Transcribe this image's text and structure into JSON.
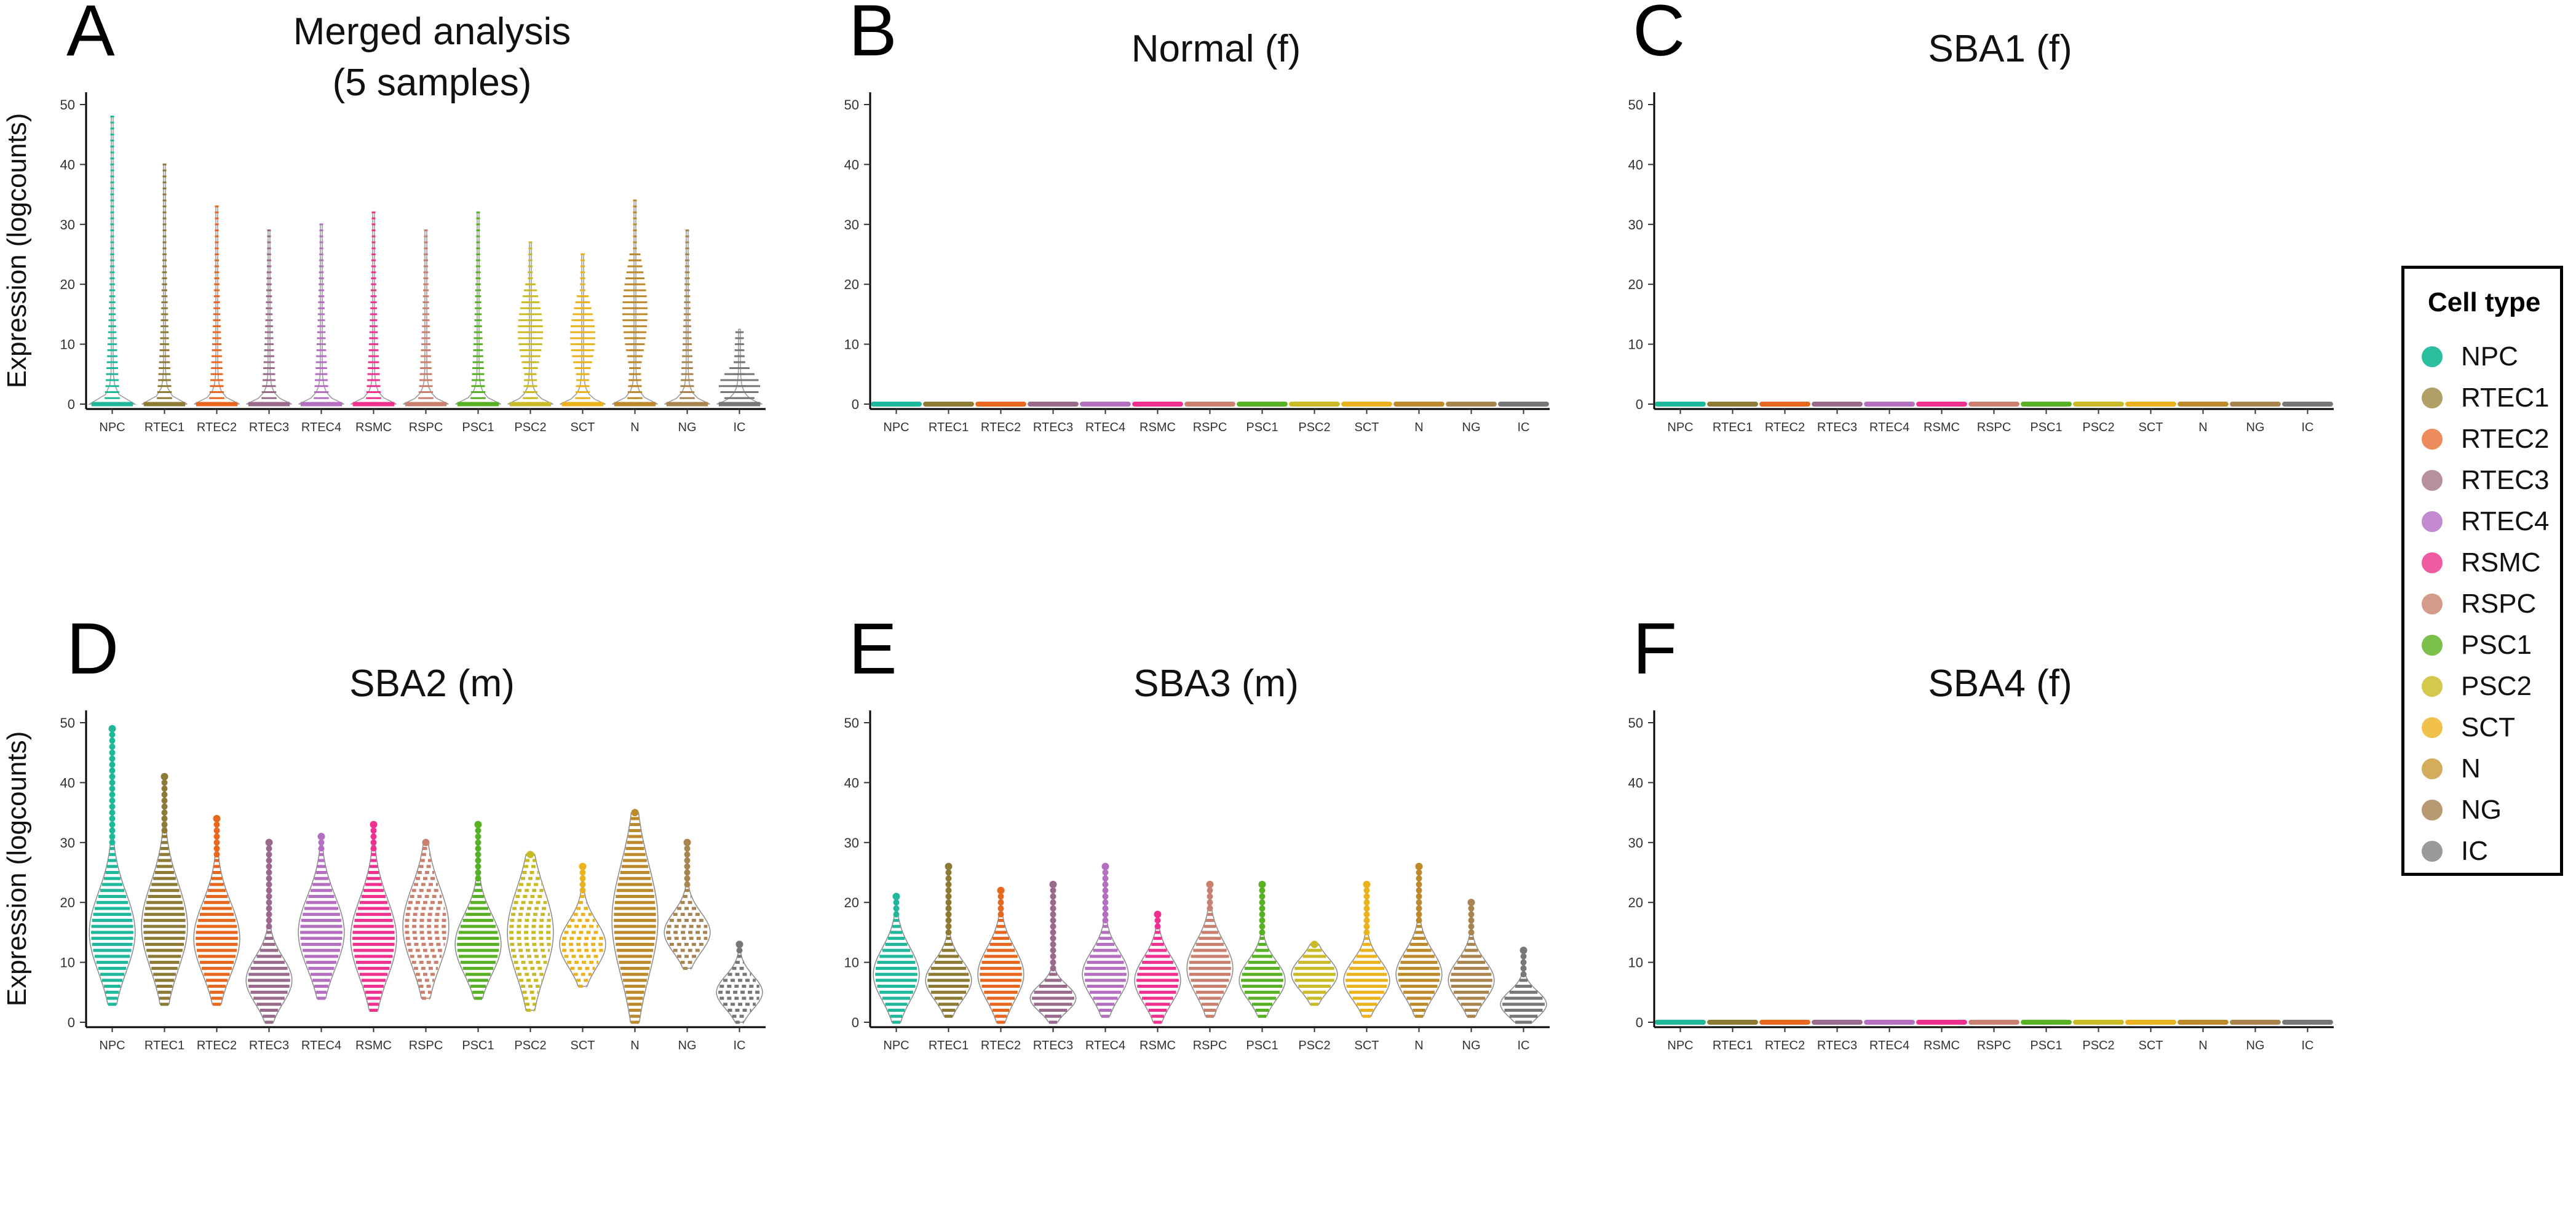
{
  "chart_data": {
    "type": "violin",
    "y_axis_label": "Expression (logcounts)",
    "ylim": [
      0,
      50
    ],
    "yticks": [
      0,
      10,
      20,
      30,
      40,
      50
    ],
    "categories": [
      "NPC",
      "RTEC1",
      "RTEC2",
      "RTEC3",
      "RTEC4",
      "RSMC",
      "RSPC",
      "PSC1",
      "PSC2",
      "SCT",
      "N",
      "NG",
      "IC"
    ],
    "colors": [
      "#1fb89a",
      "#8c7a35",
      "#e8671e",
      "#9a6a8c",
      "#b46fc1",
      "#f0318f",
      "#c9806f",
      "#58b024",
      "#c9bb27",
      "#eab21d",
      "#bc8a2a",
      "#a9844f",
      "#777777"
    ],
    "legend": {
      "title": "Cell type",
      "items": [
        {
          "label": "NPC",
          "color": "#2bbf9f"
        },
        {
          "label": "RTEC1",
          "color": "#b0a068"
        },
        {
          "label": "RTEC2",
          "color": "#ec8b5b"
        },
        {
          "label": "RTEC3",
          "color": "#b6909f"
        },
        {
          "label": "RTEC4",
          "color": "#c48ad1"
        },
        {
          "label": "RSMC",
          "color": "#f05aa0"
        },
        {
          "label": "RSPC",
          "color": "#d49a8a"
        },
        {
          "label": "PSC1",
          "color": "#7cc04c"
        },
        {
          "label": "PSC2",
          "color": "#d3c94c"
        },
        {
          "label": "SCT",
          "color": "#f0c24c"
        },
        {
          "label": "N",
          "color": "#d4ad5c"
        },
        {
          "label": "NG",
          "color": "#b89a72"
        },
        {
          "label": "IC",
          "color": "#9a9a9a"
        }
      ]
    },
    "panels": [
      {
        "letter": "A",
        "title": "Merged analysis\n(5 samples)",
        "style": "merged",
        "max": [
          48,
          40,
          33,
          29,
          30,
          32,
          29,
          32,
          27,
          25,
          34,
          29,
          12.5
        ]
      },
      {
        "letter": "B",
        "title": "Normal (f)",
        "style": "flat"
      },
      {
        "letter": "C",
        "title": "SBA1 (f)",
        "style": "flat"
      },
      {
        "letter": "D",
        "title": "SBA2 (m)",
        "style": "violin",
        "min": [
          3,
          3,
          3,
          0,
          4,
          2,
          4,
          4,
          2,
          6,
          0,
          9,
          0
        ],
        "median": [
          15,
          16,
          14,
          7,
          15,
          14,
          16,
          13,
          15,
          13,
          17,
          15,
          5
        ],
        "max": [
          49,
          41,
          34,
          30,
          31,
          33,
          30,
          33,
          28,
          26,
          35,
          30,
          13
        ]
      },
      {
        "letter": "E",
        "title": "SBA3 (m)",
        "style": "violin",
        "min": [
          0,
          1,
          0,
          0,
          1,
          0,
          1,
          1,
          3,
          1,
          1,
          1,
          0
        ],
        "median": [
          8,
          7,
          8,
          4,
          8,
          7,
          9,
          7,
          8,
          7,
          8,
          7,
          3
        ],
        "max": [
          21,
          26,
          22,
          23,
          26,
          18,
          23,
          23,
          13,
          23,
          26,
          20,
          12
        ]
      },
      {
        "letter": "F",
        "title": "SBA4 (f)",
        "style": "flat"
      }
    ]
  }
}
